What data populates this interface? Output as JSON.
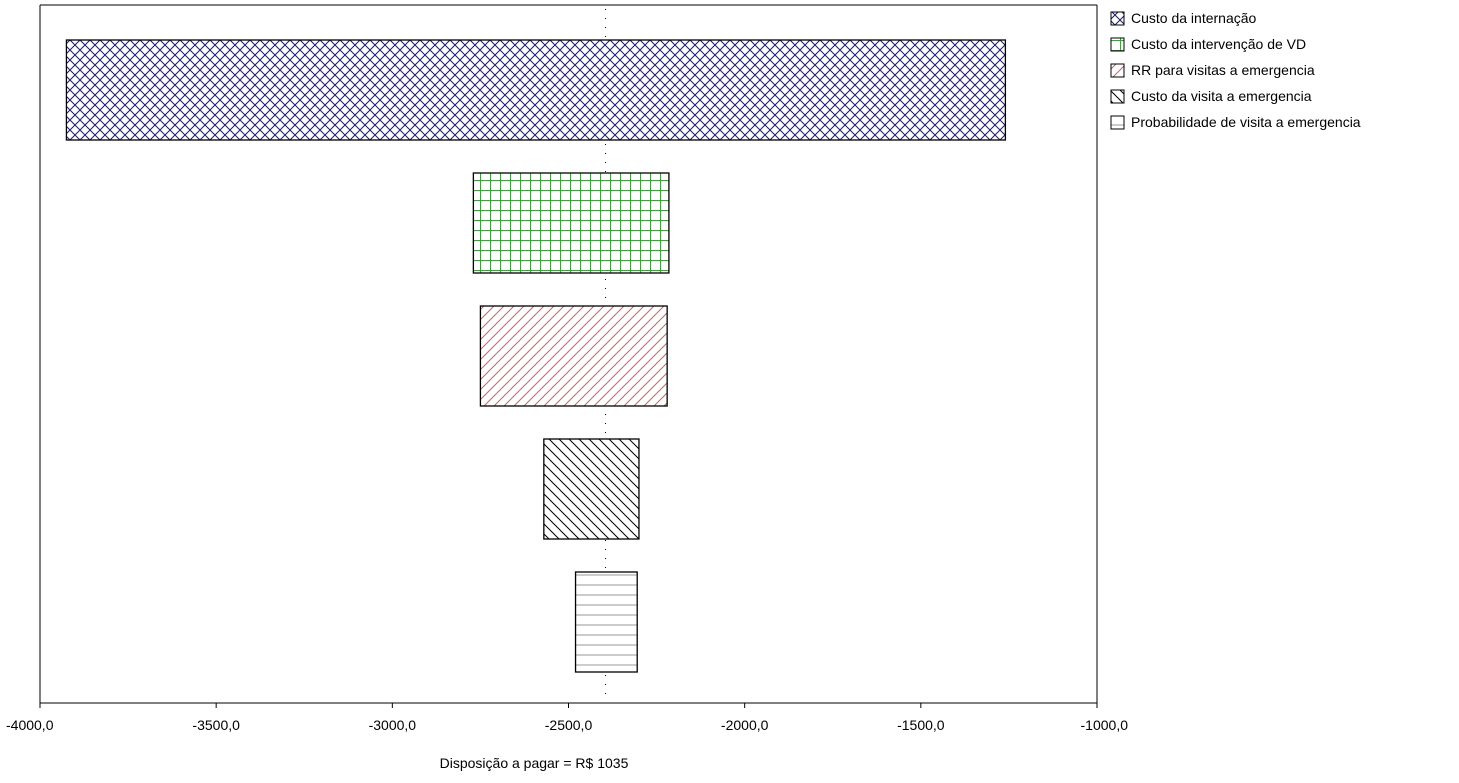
{
  "chart_data": {
    "type": "tornado",
    "orientation": "horizontal",
    "xlabel": "Disposição a pagar = R$ 1035",
    "xlim": [
      -4000,
      -1000
    ],
    "x_ticks": [
      -4000,
      -3500,
      -3000,
      -2500,
      -2000,
      -1500,
      -1000
    ],
    "x_tick_labels": [
      "-4000,0",
      "-3500,0",
      "-3000,0",
      "-2500,0",
      "-2000,0",
      "-1500,0",
      "-1000,0"
    ],
    "baseline": -2395,
    "legend_position": "right",
    "bars": [
      {
        "name": "Custo da internação",
        "low": -3925,
        "high": -1260,
        "pattern": "crosshatch",
        "color": "#1a1a6e"
      },
      {
        "name": "Custo da intervenção de VD",
        "low": -2770,
        "high": -2215,
        "pattern": "grid",
        "color": "#22b422"
      },
      {
        "name": "RR para visitas a emergencia",
        "low": -2750,
        "high": -2220,
        "pattern": "forward-diagonal",
        "color": "#b46e6e"
      },
      {
        "name": "Custo da visita a emergencia",
        "low": -2570,
        "high": -2300,
        "pattern": "back-diagonal",
        "color": "#000000"
      },
      {
        "name": "Probabilidade de visita a emergencia",
        "low": -2480,
        "high": -2305,
        "pattern": "horizontal",
        "color": "#9a9a9a"
      }
    ]
  }
}
